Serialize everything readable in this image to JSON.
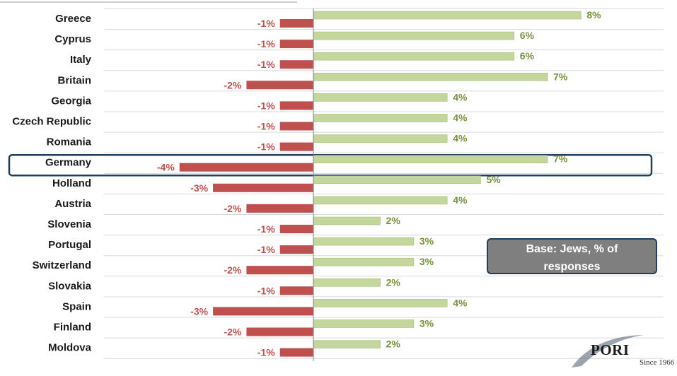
{
  "chart_data": {
    "type": "bar",
    "orientation": "horizontal",
    "categories": [
      "Greece",
      "Cyprus",
      "Italy",
      "Britain",
      "Georgia",
      "Czech Republic",
      "Romania",
      "Germany",
      "Holland",
      "Austria",
      "Slovenia",
      "Portugal",
      "Switzerland",
      "Slovakia",
      "Spain",
      "Finland",
      "Moldova"
    ],
    "series": [
      {
        "values": [
          8,
          6,
          6,
          7,
          4,
          4,
          4,
          7,
          5,
          4,
          2,
          3,
          3,
          2,
          4,
          3,
          2
        ],
        "color": "#c3d69b"
      },
      {
        "values": [
          -1,
          -1,
          -1,
          -2,
          -1,
          -1,
          -1,
          -4,
          -3,
          -2,
          -1,
          -1,
          -2,
          -1,
          -3,
          -2,
          -1
        ],
        "color": "#c0504d"
      }
    ],
    "value_suffix": "%",
    "highlighted_category": "Germany",
    "highlight_color": "#1f3f5f",
    "grid": true,
    "legend": "none"
  },
  "annotation": {
    "text_line1": "Base: Jews, % of",
    "text_line2": "responses"
  },
  "logo": {
    "name": "PORI",
    "tagline": "Since 1966"
  }
}
